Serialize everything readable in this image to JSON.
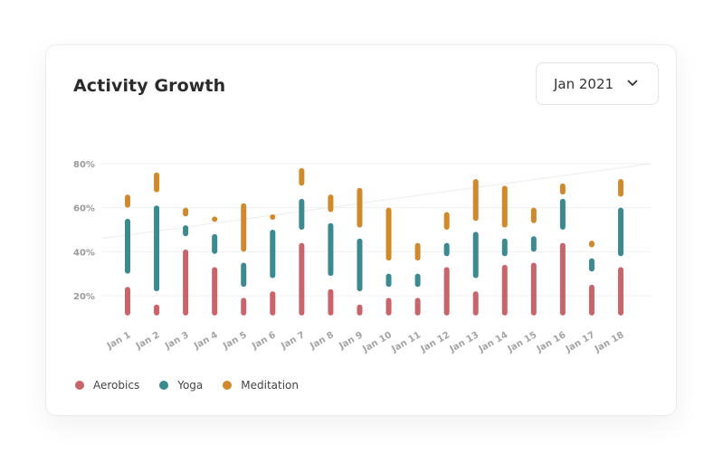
{
  "title": "Activity Growth",
  "date_select": {
    "value": "Jan 2021",
    "icon": "chevron-down-icon"
  },
  "colors": {
    "aerobics": "#c9646b",
    "yoga": "#3a8a90",
    "meditation": "#d08a2c"
  },
  "chart_data": {
    "type": "bar",
    "stacked": "floating-ranges",
    "categories": [
      "Jan 1",
      "Jan 2",
      "Jan 3",
      "Jan 4",
      "Jan 5",
      "Jan 6",
      "Jan 7",
      "Jan 8",
      "Jan 9",
      "Jan 10",
      "Jan 11",
      "Jan 12",
      "Jan 13",
      "Jan 14",
      "Jan 15",
      "Jan 16",
      "Jan 17",
      "Jan 18"
    ],
    "yticks": [
      "20%",
      "40%",
      "60%",
      "80%"
    ],
    "ytick_values": [
      20,
      40,
      60,
      80
    ],
    "ylim": [
      10,
      85
    ],
    "grid": true,
    "legend": "bottom-left",
    "trend_line": [
      46,
      80
    ],
    "series": [
      {
        "name": "Aerobics",
        "color": "#c9646b",
        "ranges": [
          [
            11,
            24
          ],
          [
            11,
            16
          ],
          [
            11,
            41
          ],
          [
            11,
            33
          ],
          [
            11,
            19
          ],
          [
            11,
            22
          ],
          [
            11,
            44
          ],
          [
            11,
            23
          ],
          [
            11,
            16
          ],
          [
            11,
            19
          ],
          [
            11,
            19
          ],
          [
            11,
            33
          ],
          [
            11,
            22
          ],
          [
            11,
            34
          ],
          [
            11,
            35
          ],
          [
            11,
            44
          ],
          [
            11,
            25
          ],
          [
            11,
            33
          ]
        ]
      },
      {
        "name": "Yoga",
        "color": "#3a8a90",
        "ranges": [
          [
            30,
            55
          ],
          [
            22,
            61
          ],
          [
            47,
            52
          ],
          [
            39,
            48
          ],
          [
            24,
            35
          ],
          [
            28,
            50
          ],
          [
            50,
            64
          ],
          [
            29,
            53
          ],
          [
            22,
            46
          ],
          [
            24,
            30
          ],
          [
            24,
            30
          ],
          [
            38,
            44
          ],
          [
            28,
            49
          ],
          [
            38,
            46
          ],
          [
            40,
            47
          ],
          [
            50,
            64
          ],
          [
            31,
            37
          ],
          [
            38,
            60
          ]
        ]
      },
      {
        "name": "Meditation",
        "color": "#d08a2c",
        "ranges": [
          [
            60,
            66
          ],
          [
            67,
            76
          ],
          [
            56,
            60
          ],
          [
            54,
            56
          ],
          [
            40,
            62
          ],
          [
            56,
            57
          ],
          [
            70,
            78
          ],
          [
            58,
            66
          ],
          [
            51,
            69
          ],
          [
            36,
            60
          ],
          [
            36,
            44
          ],
          [
            50,
            58
          ],
          [
            54,
            73
          ],
          [
            51,
            70
          ],
          [
            53,
            60
          ],
          [
            66,
            71
          ],
          [
            42,
            45
          ],
          [
            65,
            73
          ]
        ]
      }
    ]
  }
}
